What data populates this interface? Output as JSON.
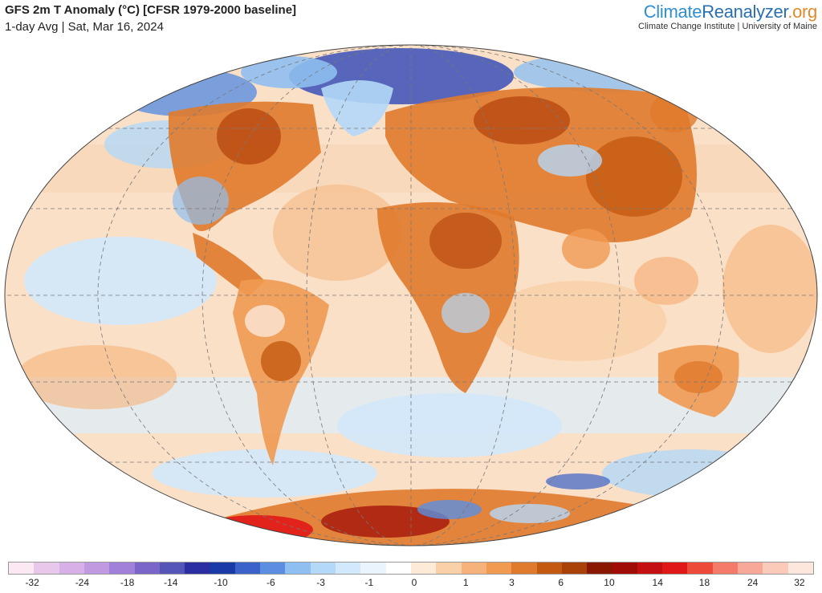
{
  "header": {
    "title": "GFS 2m T Anomaly (°C) [CFSR 1979-2000 baseline]",
    "subtitle": "1-day Avg | Sat, Mar 16, 2024"
  },
  "brand": {
    "name_part1": "Climate",
    "name_part2": "Reanalyzer",
    "name_part3": ".org",
    "subtitle": "Climate Change Institute | University of Maine"
  },
  "colors": {
    "land_warm": "#e07a2c",
    "land_hot": "#b84a10",
    "ocean_mild": "#f8d2b0",
    "cold": "#8fbff0",
    "very_cold": "#3a4fb8",
    "extreme_hot": "#e01818"
  },
  "legend": {
    "colors": [
      "#fbe8f3",
      "#e8c8ea",
      "#d6b0e6",
      "#c09ae0",
      "#a080d8",
      "#7a66c8",
      "#5555b8",
      "#2a2ea0",
      "#1a3aa8",
      "#3a62c8",
      "#5b8ee0",
      "#8fbff0",
      "#b4d8f8",
      "#d2e8fb",
      "#eaf4fd",
      "#ffffff",
      "#fdebd8",
      "#f9d0a8",
      "#f6b27a",
      "#f09a52",
      "#e07a2c",
      "#c45a12",
      "#a84208",
      "#8a1800",
      "#a00c06",
      "#c41010",
      "#e01818",
      "#ee4a3a",
      "#f47a6a",
      "#f8a898",
      "#fccab8",
      "#fde6dc"
    ],
    "ticks": [
      {
        "label": "-32",
        "pos": 3
      },
      {
        "label": "-24",
        "pos": 9.2
      },
      {
        "label": "-18",
        "pos": 14.8
      },
      {
        "label": "-14",
        "pos": 20.2
      },
      {
        "label": "-10",
        "pos": 26.4
      },
      {
        "label": "-6",
        "pos": 32.6
      },
      {
        "label": "-3",
        "pos": 38.8
      },
      {
        "label": "-1",
        "pos": 44.8
      },
      {
        "label": "0",
        "pos": 50.4
      },
      {
        "label": "1",
        "pos": 56.8
      },
      {
        "label": "3",
        "pos": 62.5
      },
      {
        "label": "6",
        "pos": 68.6
      },
      {
        "label": "10",
        "pos": 74.6
      },
      {
        "label": "14",
        "pos": 80.6
      },
      {
        "label": "18",
        "pos": 86.4
      },
      {
        "label": "24",
        "pos": 92.4
      },
      {
        "label": "32",
        "pos": 98.2
      }
    ]
  }
}
